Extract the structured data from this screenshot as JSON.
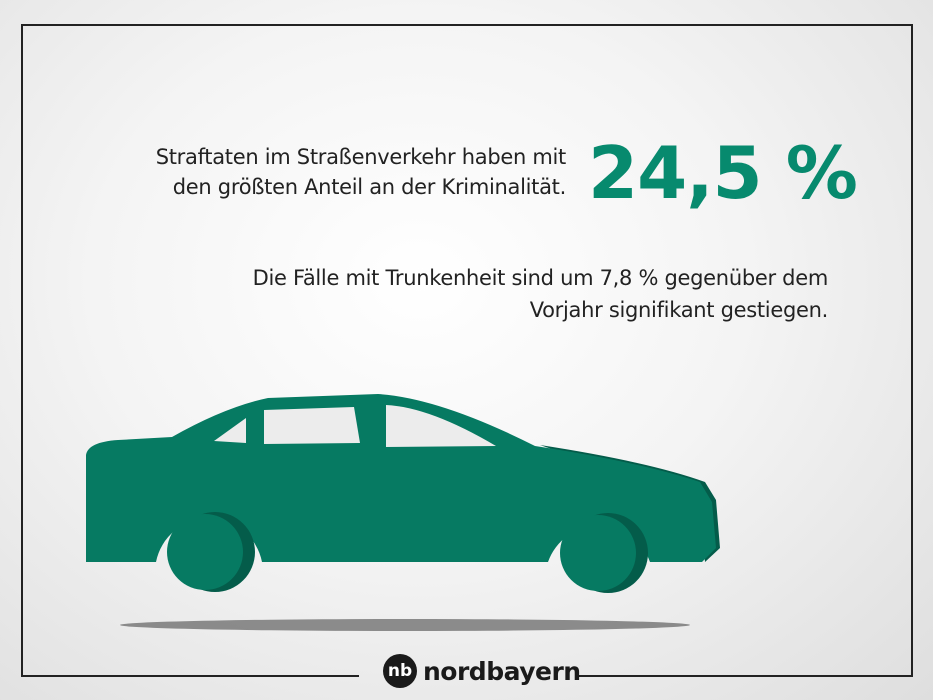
{
  "headline": {
    "line1": "Straftaten im Straßenverkehr haben mit",
    "line2": "den größten Anteil an der Kriminalität.",
    "value": "24,5 %"
  },
  "subtext": {
    "line1": "Die Fälle mit Trunkenheit sind um 7,8 % gegenüber dem",
    "line2": "Vorjahr signifikant gestiegen."
  },
  "logo": {
    "text": "nordbayern",
    "mark": "nb"
  },
  "colors": {
    "accent": "#078a6e",
    "car": "#067a62",
    "car_dark": "#045c4a"
  },
  "illustration": "car-icon"
}
